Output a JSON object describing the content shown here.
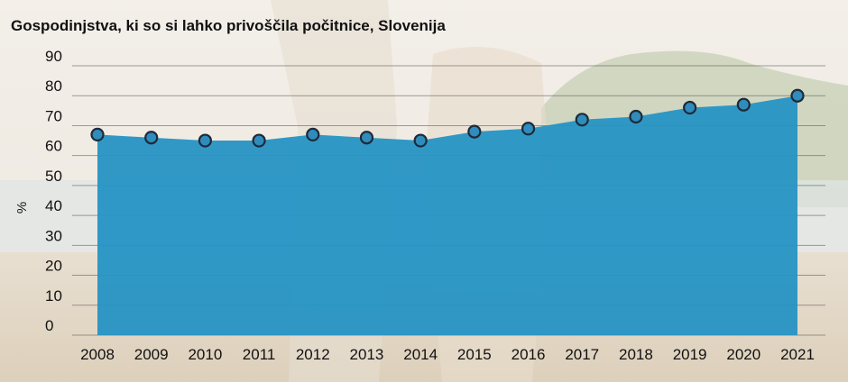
{
  "chart_data": {
    "type": "area",
    "title": "Gospodinjstva, ki so si lahko privoščila počitnice, Slovenija",
    "xlabel": "",
    "ylabel": "%",
    "categories": [
      "2008",
      "2009",
      "2010",
      "2011",
      "2012",
      "2013",
      "2014",
      "2015",
      "2016",
      "2017",
      "2018",
      "2019",
      "2020",
      "2021"
    ],
    "series": [
      {
        "values": [
          67,
          66,
          65,
          65,
          67,
          66,
          65,
          68,
          69,
          72,
          73,
          76,
          77,
          80
        ]
      }
    ],
    "ylim": [
      0,
      90
    ],
    "yticks": [
      "0",
      "10",
      "20",
      "30",
      "40",
      "50",
      "60",
      "70",
      "80",
      "90"
    ],
    "grid": true,
    "legend": "none",
    "colors": {
      "area": "#2693c4",
      "marker": "#2f8cbc",
      "marker_edge": "#1e2a38"
    }
  }
}
